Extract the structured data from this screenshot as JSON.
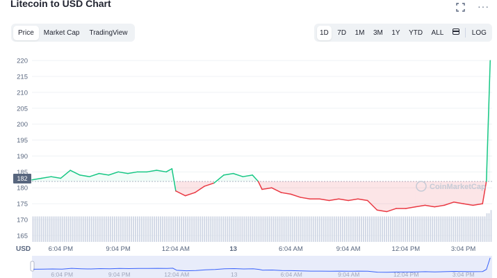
{
  "header": {
    "title": "Litecoin to USD Chart",
    "icons": {
      "fullscreen": "fullscreen-icon",
      "more": "more-dots-icon"
    }
  },
  "tabs": [
    {
      "label": "Price",
      "active": true
    },
    {
      "label": "Market Cap",
      "active": false
    },
    {
      "label": "TradingView",
      "active": false
    }
  ],
  "ranges": {
    "items": [
      {
        "label": "1D",
        "active": true
      },
      {
        "label": "7D",
        "active": false
      },
      {
        "label": "1M",
        "active": false
      },
      {
        "label": "3M",
        "active": false
      },
      {
        "label": "1Y",
        "active": false
      },
      {
        "label": "YTD",
        "active": false
      },
      {
        "label": "ALL",
        "active": false
      }
    ],
    "calendar_icon": "calendar-icon",
    "log_label": "LOG"
  },
  "colors": {
    "up": "#16c784",
    "down": "#ea3943",
    "volume": "#cfd6e4",
    "navigator_fill": "#e8ecfa",
    "navigator_line": "#3861fb",
    "grid": "#eff2f5",
    "axis_text": "#58667e"
  },
  "watermark": "CoinMarketCap",
  "chart_data": {
    "type": "line",
    "y_axis_label": "USD",
    "ylim": [
      163,
      222
    ],
    "y_ticks": [
      165,
      170,
      175,
      180,
      185,
      190,
      195,
      200,
      205,
      210,
      215,
      220
    ],
    "reference_price": 182,
    "reference_label": "182",
    "x_ticks": [
      "6:04 PM",
      "9:04 PM",
      "12:04 AM",
      "13",
      "6:04 AM",
      "9:04 AM",
      "12:04 PM",
      "3:04 PM"
    ],
    "navigator_ticks": [
      "6:04 PM",
      "9:04 PM",
      "12:04 AM",
      "13",
      "6:04 AM",
      "9:04 AM",
      "12:04 PM",
      "3:04 PM"
    ],
    "x_range_hours": [
      0,
      24
    ],
    "x_tick_hours": [
      1.5,
      4.5,
      7.5,
      10.5,
      13.5,
      16.5,
      19.5,
      22.5
    ],
    "series": [
      {
        "x": [
          0,
          0.5,
          1,
          1.5,
          2,
          2.5,
          3,
          3.5,
          4,
          4.5,
          5,
          5.5,
          6,
          6.5,
          7,
          7.3,
          7.5,
          8,
          8.5,
          9,
          9.5,
          10,
          10.5,
          11,
          11.5,
          11.8,
          12,
          12.5,
          13,
          13.5,
          14,
          14.5,
          15,
          15.5,
          16,
          16.5,
          17,
          17.5,
          18,
          18.5,
          19,
          19.5,
          20,
          20.5,
          21,
          21.5,
          22,
          22.5,
          23,
          23.5,
          23.7,
          23.9
        ],
        "y": [
          182.5,
          183.0,
          183.5,
          183.0,
          185.5,
          184.0,
          183.5,
          184.5,
          184.0,
          185.0,
          184.5,
          185.0,
          185.0,
          185.5,
          185.0,
          186.0,
          179.0,
          177.5,
          178.5,
          180.5,
          181.5,
          184.0,
          184.5,
          183.5,
          184.0,
          182.0,
          179.5,
          180.0,
          178.5,
          178.0,
          177.0,
          176.5,
          176.5,
          176.0,
          176.5,
          176.0,
          176.5,
          176.0,
          173.0,
          172.5,
          173.5,
          173.5,
          174.0,
          174.5,
          174.0,
          174.5,
          175.5,
          175.0,
          174.5,
          175.0,
          182.0,
          220.0
        ]
      }
    ],
    "volume": [
      171,
      171,
      171,
      171,
      171,
      171,
      171,
      171,
      171,
      171,
      171,
      171,
      171,
      171,
      171,
      171,
      171,
      171,
      171,
      171,
      171,
      171,
      171,
      171,
      171,
      171,
      171,
      171,
      171,
      171,
      171,
      171,
      171,
      171,
      171,
      171,
      171,
      171,
      171,
      171,
      171,
      171,
      171,
      171,
      171,
      171,
      171,
      171,
      171,
      171,
      172,
      173
    ]
  }
}
